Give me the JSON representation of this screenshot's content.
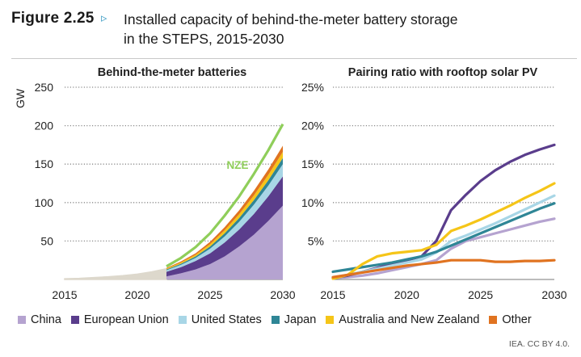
{
  "figure": {
    "label": "Figure 2.25",
    "arrow_icon": "triangle-right-outline",
    "title_line1": "Installed capacity of behind-the-meter battery storage",
    "title_line2": "in the STEPS, 2015-2030"
  },
  "credit": "IEA. CC BY 4.0.",
  "colors": {
    "China": "#b5a3d0",
    "European Union": "#5a3d8c",
    "United States": "#a8d6e6",
    "Japan": "#2f8696",
    "Australia and New Zealand": "#f5c518",
    "Other": "#e07320",
    "NZE": "#8fce5a",
    "early": "#ddd8cc"
  },
  "legend": [
    "China",
    "European Union",
    "United States",
    "Japan",
    "Australia and New Zealand",
    "Other"
  ],
  "chart_data": [
    {
      "type": "area",
      "title": "Behind-the-meter batteries",
      "ylabel": "GW",
      "xlabel": "",
      "x": [
        2015,
        2016,
        2017,
        2018,
        2019,
        2020,
        2021,
        2022,
        2023,
        2024,
        2025,
        2026,
        2027,
        2028,
        2029,
        2030
      ],
      "xticks": [
        2015,
        2020,
        2025,
        2030
      ],
      "yticks": [
        50,
        100,
        150,
        200,
        250
      ],
      "ylim": [
        0,
        250
      ],
      "xlim": [
        2015,
        2030
      ],
      "stacked": true,
      "early_total": {
        "name": "Historical total",
        "x": [
          2015,
          2016,
          2017,
          2018,
          2019,
          2020,
          2021,
          2022
        ],
        "values": [
          1,
          1.5,
          2.5,
          3.5,
          5,
          7,
          10,
          14
        ]
      },
      "series": [
        {
          "name": "China",
          "x": [
            2022,
            2023,
            2024,
            2025,
            2026,
            2027,
            2028,
            2029,
            2030
          ],
          "values": [
            4,
            8,
            13,
            20,
            30,
            43,
            58,
            76,
            96
          ]
        },
        {
          "name": "European Union",
          "x": [
            2022,
            2023,
            2024,
            2025,
            2026,
            2027,
            2028,
            2029,
            2030
          ],
          "values": [
            6,
            8,
            11,
            14,
            18,
            22,
            27,
            32,
            38
          ]
        },
        {
          "name": "United States",
          "x": [
            2022,
            2023,
            2024,
            2025,
            2026,
            2027,
            2028,
            2029,
            2030
          ],
          "values": [
            2,
            3,
            4,
            6,
            8,
            10,
            12,
            14,
            16
          ]
        },
        {
          "name": "Japan",
          "x": [
            2022,
            2023,
            2024,
            2025,
            2026,
            2027,
            2028,
            2029,
            2030
          ],
          "values": [
            1,
            1.5,
            2,
            3,
            4,
            5,
            6,
            7,
            8
          ]
        },
        {
          "name": "Australia and New Zealand",
          "x": [
            2022,
            2023,
            2024,
            2025,
            2026,
            2027,
            2028,
            2029,
            2030
          ],
          "values": [
            1,
            1.5,
            2,
            3,
            4,
            5,
            6,
            7,
            8
          ]
        },
        {
          "name": "Other",
          "x": [
            2022,
            2023,
            2024,
            2025,
            2026,
            2027,
            2028,
            2029,
            2030
          ],
          "values": [
            1,
            1.5,
            2,
            3,
            4,
            5,
            6,
            7,
            8
          ]
        }
      ],
      "nze": {
        "name": "NZE",
        "label": "NZE",
        "x": [
          2022,
          2023,
          2024,
          2025,
          2026,
          2027,
          2028,
          2029,
          2030
        ],
        "values": [
          17,
          28,
          42,
          60,
          83,
          108,
          137,
          168,
          202
        ]
      }
    },
    {
      "type": "line",
      "title": "Pairing ratio with rooftop solar PV",
      "xlabel": "",
      "ylabel": "",
      "x": [
        2015,
        2016,
        2017,
        2018,
        2019,
        2020,
        2021,
        2022,
        2023,
        2024,
        2025,
        2026,
        2027,
        2028,
        2029,
        2030
      ],
      "xticks": [
        2015,
        2020,
        2025,
        2030
      ],
      "yticks": [
        5,
        10,
        15,
        20,
        25
      ],
      "ytick_labels": [
        "5%",
        "10%",
        "15%",
        "20%",
        "25%"
      ],
      "ylim": [
        0,
        25
      ],
      "xlim": [
        2015,
        2030
      ],
      "series": [
        {
          "name": "China",
          "values": [
            0.2,
            0.3,
            0.5,
            0.8,
            1.2,
            1.6,
            2.0,
            2.5,
            4.0,
            5.0,
            5.5,
            6.0,
            6.5,
            7.0,
            7.5,
            7.9
          ]
        },
        {
          "name": "European Union",
          "values": [
            0.2,
            0.5,
            1.0,
            1.5,
            2.0,
            2.5,
            3.0,
            5.0,
            9.0,
            11.0,
            12.8,
            14.2,
            15.3,
            16.2,
            16.9,
            17.5
          ]
        },
        {
          "name": "United States",
          "values": [
            0.3,
            0.6,
            1.0,
            1.4,
            1.8,
            2.2,
            2.6,
            3.5,
            5.0,
            5.7,
            6.5,
            7.3,
            8.2,
            9.1,
            10.0,
            10.9
          ]
        },
        {
          "name": "Japan",
          "values": [
            1.0,
            1.3,
            1.6,
            1.9,
            2.2,
            2.6,
            3.0,
            3.6,
            4.4,
            5.2,
            6.0,
            6.8,
            7.6,
            8.4,
            9.2,
            9.9
          ]
        },
        {
          "name": "Australia and New Zealand",
          "values": [
            0.1,
            0.6,
            2.0,
            3.0,
            3.4,
            3.6,
            3.8,
            4.5,
            6.3,
            7.0,
            7.8,
            8.7,
            9.6,
            10.6,
            11.5,
            12.5
          ]
        },
        {
          "name": "Other",
          "values": [
            0.3,
            0.6,
            0.9,
            1.2,
            1.5,
            1.8,
            2.0,
            2.2,
            2.5,
            2.5,
            2.5,
            2.3,
            2.3,
            2.4,
            2.4,
            2.5
          ]
        }
      ]
    }
  ]
}
